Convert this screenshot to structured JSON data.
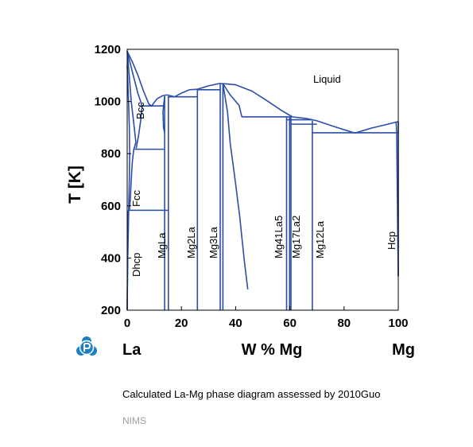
{
  "chart_data": {
    "type": "phase-diagram",
    "xlabel": "W % Mg",
    "ylabel": "T [K]",
    "xlim": [
      0,
      100
    ],
    "ylim": [
      200,
      1200
    ],
    "x_ticks": [
      0,
      20,
      40,
      60,
      80,
      100
    ],
    "y_ticks": [
      200,
      400,
      600,
      800,
      1000,
      1200
    ],
    "left_element": "La",
    "right_element": "Mg",
    "line_color": "#2a4ea8",
    "grid": false,
    "phase_labels": [
      "Liquid",
      "Bcc",
      "Fcc",
      "Dhcp",
      "MgLa",
      "Mg2La",
      "Mg3La",
      "Mg41La5",
      "Mg17La2",
      "Mg12La",
      "Hcp"
    ],
    "boundaries": [
      {
        "name": "liquidus-la-side",
        "points": [
          [
            0,
            1193
          ],
          [
            2,
            1150
          ],
          [
            4,
            1100
          ],
          [
            6,
            1040
          ],
          [
            8,
            990
          ],
          [
            9,
            983
          ]
        ]
      },
      {
        "name": "liquidus-mgla",
        "points": [
          [
            9,
            983
          ],
          [
            11,
            1010
          ],
          [
            13,
            1022
          ],
          [
            14.6,
            1025
          ],
          [
            16,
            1022
          ],
          [
            17.5,
            1018
          ]
        ]
      },
      {
        "name": "liquidus-mg2la",
        "points": [
          [
            17.5,
            1018
          ],
          [
            20,
            1032
          ],
          [
            23,
            1045
          ],
          [
            26,
            1047
          ]
        ]
      },
      {
        "name": "liquidus-mg3la",
        "points": [
          [
            26,
            1047
          ],
          [
            30,
            1060
          ],
          [
            34,
            1069
          ],
          [
            36,
            1068
          ]
        ]
      },
      {
        "name": "liquidus-dome",
        "points": [
          [
            36,
            1068
          ],
          [
            40,
            1064
          ],
          [
            46,
            1040
          ],
          [
            52,
            1000
          ],
          [
            57,
            965
          ],
          [
            61,
            941
          ]
        ]
      },
      {
        "name": "liquidus-mg-rich",
        "points": [
          [
            61,
            941
          ],
          [
            66,
            935
          ],
          [
            70,
            926
          ],
          [
            76,
            905
          ],
          [
            84,
            879
          ]
        ]
      },
      {
        "name": "liquidus-hcp",
        "points": [
          [
            84,
            879
          ],
          [
            90,
            898
          ],
          [
            95,
            910
          ],
          [
            100,
            923
          ]
        ]
      },
      {
        "name": "bcc-liquid-solidus",
        "points": [
          [
            0,
            1193
          ],
          [
            2,
            1110
          ],
          [
            4,
            1030
          ],
          [
            5.5,
            983
          ]
        ]
      },
      {
        "name": "bcc-left",
        "points": [
          [
            0,
            1193
          ],
          [
            0.6,
            1120
          ],
          [
            1.5,
            1000
          ],
          [
            2.6,
            900
          ],
          [
            3.2,
            843
          ]
        ]
      },
      {
        "name": "bcc-right",
        "points": [
          [
            5.5,
            983
          ],
          [
            5,
            930
          ],
          [
            4.2,
            870
          ],
          [
            3.3,
            820
          ]
        ]
      },
      {
        "name": "fcc-left",
        "points": [
          [
            0,
            1140
          ],
          [
            0.5,
            1000
          ],
          [
            0.8,
            900
          ],
          [
            0.9,
            800
          ],
          [
            0.8,
            700
          ],
          [
            0.6,
            600
          ],
          [
            0.4,
            500
          ],
          [
            0.2,
            400
          ],
          [
            0,
            200
          ]
        ]
      },
      {
        "name": "fcc-right",
        "points": [
          [
            3.2,
            843
          ],
          [
            2.4,
            815
          ],
          [
            1.9,
            770
          ],
          [
            1.5,
            700
          ],
          [
            1.1,
            620
          ],
          [
            0.8,
            583
          ]
        ]
      },
      {
        "name": "dhcp-boundary",
        "points": [
          [
            0.4,
            583
          ],
          [
            0.2,
            500
          ],
          [
            0,
            200
          ]
        ]
      },
      {
        "name": "mgla-left",
        "points": [
          [
            13.8,
            1020
          ],
          [
            13.8,
            200
          ]
        ]
      },
      {
        "name": "mgla-right",
        "points": [
          [
            15.2,
            1020
          ],
          [
            15.2,
            200
          ]
        ]
      },
      {
        "name": "mgla-peritectic-left",
        "points": [
          [
            13.8,
            1020
          ],
          [
            13.5,
            990
          ],
          [
            13.2,
            960
          ],
          [
            13.4,
            900
          ],
          [
            13.8,
            880
          ]
        ]
      },
      {
        "name": "mg2la",
        "points": [
          [
            25.9,
            1047
          ],
          [
            25.9,
            200
          ]
        ]
      },
      {
        "name": "mg3la-left",
        "points": [
          [
            34.3,
            1069
          ],
          [
            34.3,
            200
          ]
        ]
      },
      {
        "name": "mg3la-right",
        "points": [
          [
            35.3,
            1069
          ],
          [
            35.3,
            200
          ]
        ]
      },
      {
        "name": "mg3la-solvus",
        "points": [
          [
            35.3,
            1069
          ],
          [
            37,
            960
          ],
          [
            38,
            840
          ],
          [
            39.3,
            740
          ],
          [
            40.3,
            660
          ],
          [
            41.5,
            560
          ],
          [
            42.5,
            460
          ],
          [
            43.3,
            380
          ],
          [
            44.5,
            280
          ]
        ]
      },
      {
        "name": "mg3la-dome-left",
        "points": [
          [
            35.3,
            1069
          ],
          [
            38,
            1025
          ],
          [
            41.3,
            985
          ],
          [
            42.3,
            941
          ]
        ]
      },
      {
        "name": "mg41la5",
        "points": [
          [
            58.8,
            941
          ],
          [
            58.8,
            200
          ]
        ]
      },
      {
        "name": "mg17la2-left",
        "points": [
          [
            59.9,
            941
          ],
          [
            59.9,
            200
          ]
        ]
      },
      {
        "name": "mg17la2-right",
        "points": [
          [
            60.4,
            941
          ],
          [
            60.4,
            200
          ]
        ]
      },
      {
        "name": "mg12la",
        "points": [
          [
            68.3,
            926
          ],
          [
            68.3,
            200
          ]
        ]
      },
      {
        "name": "hcp-solvus",
        "points": [
          [
            99.2,
            923
          ],
          [
            99.4,
            880
          ],
          [
            99.6,
            700
          ],
          [
            99.8,
            500
          ],
          [
            100,
            330
          ]
        ]
      },
      {
        "name": "hcp-right-edge",
        "points": [
          [
            100,
            923
          ],
          [
            100,
            330
          ]
        ]
      }
    ],
    "isotherms": [
      {
        "x1": 4.8,
        "x2": 13.8,
        "y": 983
      },
      {
        "x1": 2.8,
        "x2": 13.8,
        "y": 817
      },
      {
        "x1": 0.4,
        "x2": 15.2,
        "y": 583
      },
      {
        "x1": 15.2,
        "x2": 25.9,
        "y": 1018
      },
      {
        "x1": 25.9,
        "x2": 34.3,
        "y": 1045
      },
      {
        "x1": 42.3,
        "x2": 60.4,
        "y": 941
      },
      {
        "x1": 58.8,
        "x2": 68.3,
        "y": 930
      },
      {
        "x1": 59.9,
        "x2": 70.0,
        "y": 913
      },
      {
        "x1": 68.3,
        "x2": 99.8,
        "y": 880
      }
    ],
    "logo_color": "#1b7fc4"
  },
  "caption": "Calculated La-Mg phase diagram assessed by 2010Guo",
  "source": "NIMS"
}
